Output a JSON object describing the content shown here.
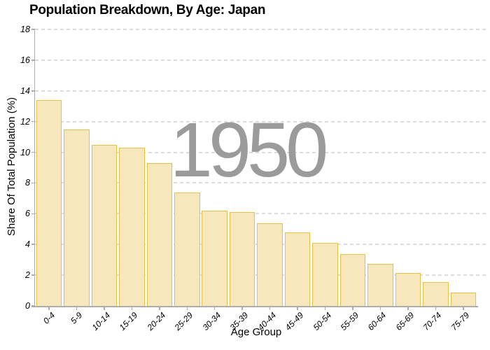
{
  "chart_data": {
    "type": "bar",
    "title": "Population Breakdown, By Age: Japan",
    "xlabel": "Age Group",
    "ylabel": "Share Of Total Population (%)",
    "annotation": "1950",
    "categories": [
      "0-4",
      "5-9",
      "10-14",
      "15-19",
      "20-24",
      "25-29",
      "30-34",
      "35-39",
      "40-44",
      "45-49",
      "50-54",
      "55-59",
      "60-64",
      "65-69",
      "70-74",
      "75-79"
    ],
    "values": [
      13.4,
      11.5,
      10.5,
      10.3,
      9.3,
      7.4,
      6.2,
      6.1,
      5.4,
      4.8,
      4.1,
      3.35,
      2.75,
      2.15,
      1.55,
      0.85
    ],
    "ylim": [
      0,
      18
    ],
    "yticks": [
      0,
      2,
      4,
      6,
      8,
      10,
      12,
      14,
      16,
      18
    ],
    "grid": "horizontal-dashed",
    "legend": "none",
    "colors": {
      "bar_fill": "#f6e7bd",
      "bar_border": "#e9c046",
      "gridline": "#dcdcdc",
      "axis": "#adadad",
      "watermark": "#9b9b9b",
      "text": "#000000",
      "background": "#ffffff"
    }
  }
}
